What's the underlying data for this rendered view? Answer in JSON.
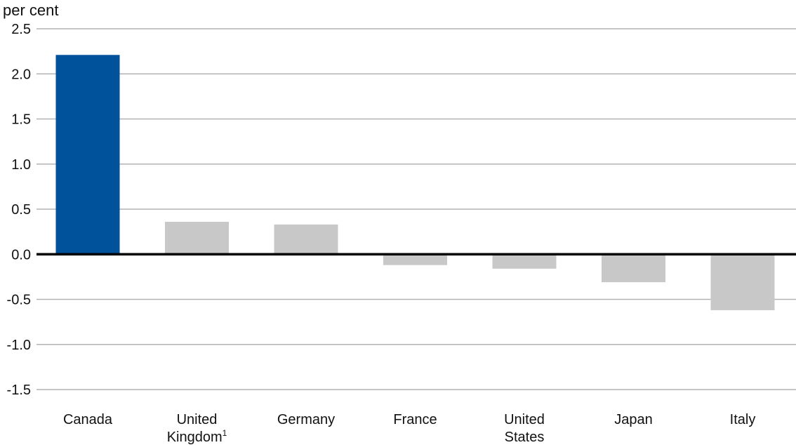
{
  "chart_data": {
    "type": "bar",
    "ylabel": "per cent",
    "ylim": [
      -1.5,
      2.5
    ],
    "yticks": [
      "2.5",
      "2.0",
      "1.5",
      "1.0",
      "0.5",
      "0.0",
      "-0.5",
      "-1.0",
      "-1.5"
    ],
    "ytick_values": [
      2.5,
      2.0,
      1.5,
      1.0,
      0.5,
      0.0,
      -0.5,
      -1.0,
      -1.5
    ],
    "grid": true,
    "categories": [
      "Canada",
      "United Kingdom¹",
      "Germany",
      "France",
      "United States",
      "Japan",
      "Italy"
    ],
    "category_label_lines": [
      {
        "line1": "Canada",
        "line2": "",
        "sup": ""
      },
      {
        "line1": "United",
        "line2": "Kingdom",
        "sup": "1"
      },
      {
        "line1": "Germany",
        "line2": "",
        "sup": ""
      },
      {
        "line1": "France",
        "line2": "",
        "sup": ""
      },
      {
        "line1": "United",
        "line2": "States",
        "sup": ""
      },
      {
        "line1": "Japan",
        "line2": "",
        "sup": ""
      },
      {
        "line1": "Italy",
        "line2": "",
        "sup": ""
      }
    ],
    "values": [
      2.21,
      0.36,
      0.33,
      -0.12,
      -0.16,
      -0.31,
      -0.62
    ],
    "colors": {
      "highlight": "#00529b",
      "default": "#c8c8c8",
      "grid": "#b3b3b3",
      "zero_line": "#000000"
    },
    "highlight_index": 0
  }
}
